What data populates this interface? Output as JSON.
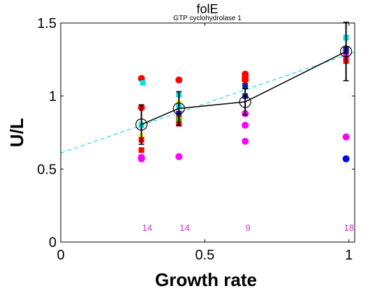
{
  "chart_data": {
    "type": "scatter",
    "title": "folE",
    "subtitle": "GTP cyclohydrolase 1",
    "xlabel": "Growth rate",
    "ylabel": "U/L",
    "xlim": [
      0,
      1.02
    ],
    "ylim": [
      0,
      1.5
    ],
    "xticks": [
      0,
      0.5,
      1
    ],
    "xtick_labels": [
      "0",
      "0.5",
      "1"
    ],
    "yticks": [
      0,
      0.5,
      1,
      1.5
    ],
    "ytick_labels": [
      "0",
      "0.5",
      "1",
      "1.5"
    ],
    "grid": false,
    "colors": {
      "red": "#ff0000",
      "magenta": "#ff00ff",
      "cyan": "#00e5e5",
      "blue": "#0000ff",
      "navy": "#1a1aa6",
      "yellow": "#ffff00",
      "green": "#55bb22",
      "mean_line": "#000000",
      "fit_line": "#00d0e0",
      "count_text": "#cc33cc"
    },
    "fit_line": {
      "x": [
        0,
        1.02
      ],
      "y": [
        0.61,
        1.3
      ]
    },
    "mean_series": {
      "x": [
        0.28,
        0.41,
        0.64,
        0.99
      ],
      "y": [
        0.805,
        0.915,
        0.96,
        1.305
      ],
      "error": [
        0.135,
        0.115,
        0.09,
        0.2
      ]
    },
    "points": [
      {
        "x": 0.28,
        "y": 1.12,
        "shape": "circle",
        "color": "red"
      },
      {
        "x": 0.28,
        "y": 0.92,
        "shape": "circle",
        "color": "red"
      },
      {
        "x": 0.285,
        "y": 1.09,
        "shape": "square",
        "color": "cyan"
      },
      {
        "x": 0.28,
        "y": 0.8,
        "shape": "square",
        "color": "cyan"
      },
      {
        "x": 0.28,
        "y": 0.72,
        "shape": "square",
        "color": "yellow"
      },
      {
        "x": 0.28,
        "y": 0.7,
        "shape": "square",
        "color": "red"
      },
      {
        "x": 0.28,
        "y": 0.63,
        "shape": "square",
        "color": "red"
      },
      {
        "x": 0.28,
        "y": 0.58,
        "shape": "circle",
        "color": "magenta"
      },
      {
        "x": 0.28,
        "y": 0.57,
        "shape": "circle",
        "color": "magenta"
      },
      {
        "x": 0.41,
        "y": 1.11,
        "shape": "circle",
        "color": "red"
      },
      {
        "x": 0.41,
        "y": 1.01,
        "shape": "square",
        "color": "cyan"
      },
      {
        "x": 0.41,
        "y": 0.95,
        "shape": "square",
        "color": "yellow"
      },
      {
        "x": 0.41,
        "y": 0.93,
        "shape": "square",
        "color": "cyan"
      },
      {
        "x": 0.41,
        "y": 0.88,
        "shape": "square",
        "color": "navy"
      },
      {
        "x": 0.41,
        "y": 0.85,
        "shape": "square",
        "color": "red"
      },
      {
        "x": 0.41,
        "y": 0.84,
        "shape": "square",
        "color": "green"
      },
      {
        "x": 0.41,
        "y": 0.81,
        "shape": "square",
        "color": "red"
      },
      {
        "x": 0.41,
        "y": 0.585,
        "shape": "circle",
        "color": "magenta"
      },
      {
        "x": 0.64,
        "y": 1.15,
        "shape": "circle",
        "color": "red"
      },
      {
        "x": 0.64,
        "y": 1.13,
        "shape": "circle",
        "color": "red"
      },
      {
        "x": 0.64,
        "y": 1.11,
        "shape": "circle",
        "color": "red"
      },
      {
        "x": 0.64,
        "y": 1.07,
        "shape": "square",
        "color": "navy"
      },
      {
        "x": 0.64,
        "y": 1.0,
        "shape": "square",
        "color": "navy"
      },
      {
        "x": 0.64,
        "y": 0.88,
        "shape": "circle",
        "color": "magenta"
      },
      {
        "x": 0.64,
        "y": 0.8,
        "shape": "circle",
        "color": "magenta"
      },
      {
        "x": 0.64,
        "y": 0.69,
        "shape": "circle",
        "color": "magenta"
      },
      {
        "x": 0.99,
        "y": 1.4,
        "shape": "square",
        "color": "cyan"
      },
      {
        "x": 0.99,
        "y": 1.32,
        "shape": "square",
        "color": "navy"
      },
      {
        "x": 0.99,
        "y": 1.3,
        "shape": "square",
        "color": "navy"
      },
      {
        "x": 0.99,
        "y": 1.27,
        "shape": "square",
        "color": "magenta"
      },
      {
        "x": 0.99,
        "y": 1.24,
        "shape": "square",
        "color": "red"
      },
      {
        "x": 0.99,
        "y": 0.72,
        "shape": "circle",
        "color": "magenta"
      },
      {
        "x": 0.99,
        "y": 0.57,
        "shape": "circle",
        "color": "blue"
      }
    ],
    "counts": [
      {
        "x": 0.3,
        "label": "14"
      },
      {
        "x": 0.43,
        "label": "14"
      },
      {
        "x": 0.65,
        "label": "9"
      },
      {
        "x": 1.0,
        "label": "18"
      }
    ],
    "counts_y": 0.1
  }
}
